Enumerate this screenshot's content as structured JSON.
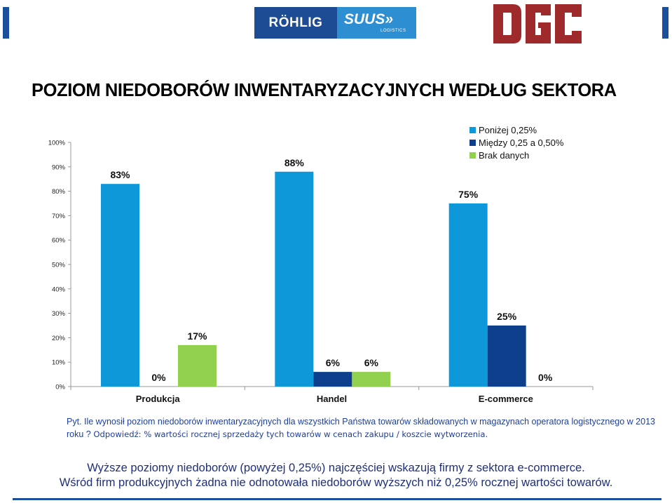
{
  "header": {
    "logo_left_text": "RÖHLIG",
    "logo_right_text": "SUUS»",
    "logo_right_sub": "LOGISTICS",
    "logo_dgc": "DGC"
  },
  "title": "POZIOM NIEDOBORÓW INWENTARYZACYJNYCH WEDŁUG SEKTORA",
  "chart_data": {
    "type": "bar",
    "categories": [
      "Produkcja",
      "Handel",
      "E-commerce"
    ],
    "series": [
      {
        "name": "Poniżej 0,25%",
        "color": "#0f98d9",
        "values": [
          83,
          88,
          75
        ],
        "labels": [
          "83%",
          "88%",
          "75%"
        ]
      },
      {
        "name": "Między 0,25 a 0,50%",
        "color": "#0d3f8c",
        "values": [
          0,
          6,
          25
        ],
        "labels": [
          "0%",
          "6%",
          "25%"
        ]
      },
      {
        "name": "Brak danych",
        "color": "#92d050",
        "values": [
          17,
          6,
          0
        ],
        "labels": [
          "17%",
          "6%",
          "0%"
        ]
      }
    ],
    "yticks": [
      "0%",
      "10%",
      "20%",
      "30%",
      "40%",
      "50%",
      "60%",
      "70%",
      "80%",
      "90%",
      "100%"
    ],
    "ylim": [
      0,
      100
    ],
    "grid": false,
    "legend_position": "top-right"
  },
  "question": {
    "part_a": "Pyt. Ile wynosił poziom niedoborów inwentaryzacyjnych dla wszystkich Państwa towarów składowanych w magazynach operatora logistycznego w 2013 roku ?",
    "part_b": " Odpowiedź: % wartości rocznej sprzedaży tych towarów w cenach zakupu / koszcie wytworzenia."
  },
  "summary": {
    "line1": "Wyższe poziomy niedoborów (powyżej 0,25%) najczęściej wskazują firmy z sektora e-commerce.",
    "line2": "Wśród firm produkcyjnych żadna nie odnotowała niedoborów wyższych niż 0,25% rocznej wartości towarów."
  }
}
